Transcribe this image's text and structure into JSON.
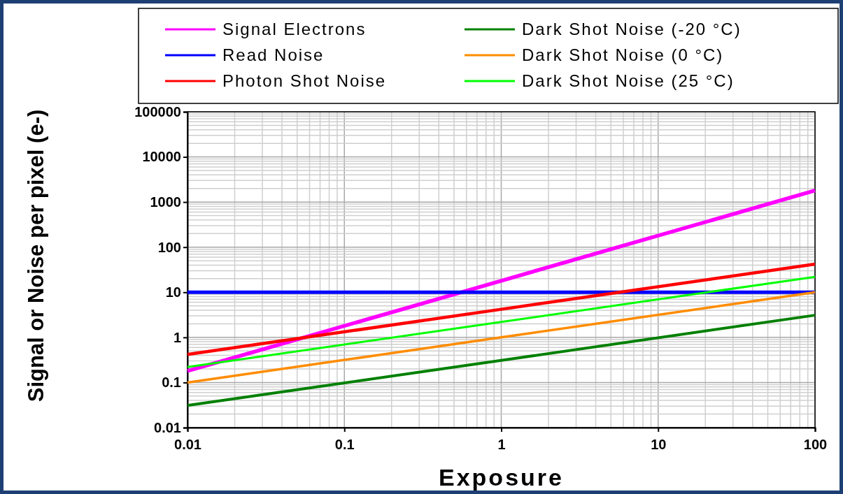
{
  "chart_data": {
    "type": "line",
    "xlabel": "Exposure",
    "ylabel": "Signal or Noise per pixel (e-)",
    "log": "xy",
    "grid": true,
    "legend": "top",
    "marker": "none",
    "line_style": "solid",
    "xlim": [
      0.01,
      100
    ],
    "ylim": [
      0.01,
      100000
    ],
    "xticks": [
      0.01,
      0.1,
      1,
      10,
      100
    ],
    "yticks": [
      0.01,
      0.1,
      1,
      10,
      100,
      1000,
      10000,
      100000
    ],
    "x": [
      0.01,
      1,
      100
    ],
    "series": [
      {
        "name": "Signal Electrons",
        "color": "#ff00ff",
        "values": [
          0.18,
          18,
          1800
        ]
      },
      {
        "name": "Read Noise",
        "color": "#0000ff",
        "values": [
          10,
          10,
          10
        ]
      },
      {
        "name": "Photon Shot Noise",
        "color": "#ff0000",
        "values": [
          0.42,
          4.2,
          42
        ]
      },
      {
        "name": "Dark Shot Noise (-20 °C)",
        "color": "#008000",
        "values": [
          0.031,
          0.31,
          3.1
        ]
      },
      {
        "name": "Dark Shot Noise (0 °C)",
        "color": "#ff8c00",
        "values": [
          0.1,
          1,
          10
        ]
      },
      {
        "name": "Dark Shot Noise (25 °C)",
        "color": "#00ff00",
        "values": [
          0.22,
          2.2,
          22
        ]
      }
    ]
  }
}
